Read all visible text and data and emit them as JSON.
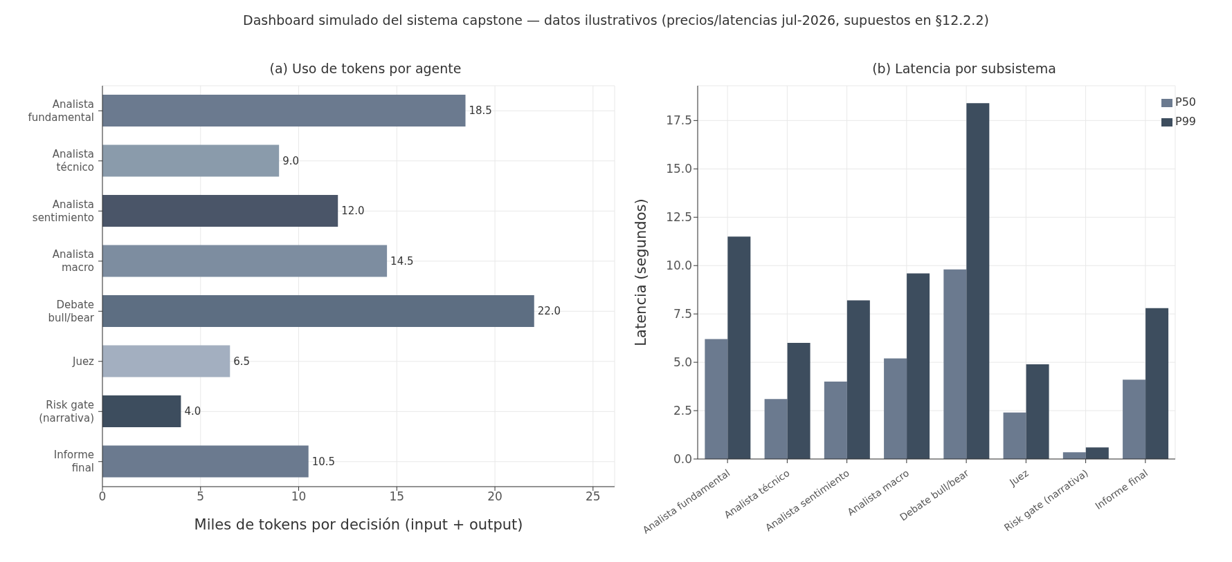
{
  "chart_data": [
    {
      "type": "bar",
      "title": "(a) Uso de tokens por agente",
      "subtitle": "Dashboard simulado del sistema capstone — datos ilustrativos (precios/latencias jul-2026, supuestos en §12.2.2)",
      "orientation": "horizontal",
      "xlabel": "Miles de tokens por decisión (input + output)",
      "categories": [
        "Analista\nfundamental",
        "Analista\ntécnico",
        "Analista\nsentimiento",
        "Analista\nmacro",
        "Debate\nbull/bear",
        "Juez",
        "Risk gate\n(narrativa)",
        "Informe\nfinal"
      ],
      "values": [
        18.5,
        9.0,
        12.0,
        14.5,
        22.0,
        6.5,
        4.0,
        10.5
      ],
      "colors": [
        "#6b7a8f",
        "#8a9bab",
        "#4a5568",
        "#7d8da0",
        "#5d6e82",
        "#a3afc0",
        "#3d4d5e",
        "#6b7a8f"
      ],
      "value_labels": [
        "18.5",
        "9.0",
        "12.0",
        "14.5",
        "22.0",
        "6.5",
        "4.0",
        "10.5"
      ],
      "xlim": [
        0,
        26.1
      ],
      "xticks": [
        0,
        5,
        10,
        15,
        20,
        25
      ],
      "grid": true
    },
    {
      "type": "bar",
      "title": "(b) Latencia por subsistema",
      "ylabel": "Latencia (segundos)",
      "categories": [
        "Analista fundamental",
        "Analista técnico",
        "Analista sentimiento",
        "Analista macro",
        "Debate bull/bear",
        "Juez",
        "Risk gate (narrativa)",
        "Informe final"
      ],
      "series": [
        {
          "name": "P50",
          "color": "#6b7a8f",
          "values": [
            6.2,
            3.1,
            4.0,
            5.2,
            9.8,
            2.4,
            0.35,
            4.1
          ]
        },
        {
          "name": "P99",
          "color": "#3d4d5e",
          "values": [
            11.5,
            6.0,
            8.2,
            9.6,
            18.4,
            4.9,
            0.6,
            7.8
          ]
        }
      ],
      "ylim": [
        0,
        19.3
      ],
      "yticks": [
        {
          "value": 0,
          "label": "0.0"
        },
        {
          "value": 2.5,
          "label": "2.5"
        },
        {
          "value": 5,
          "label": "5.0"
        },
        {
          "value": 7.5,
          "label": "7.5"
        },
        {
          "value": 10,
          "label": "10.0"
        },
        {
          "value": 12.5,
          "label": "12.5"
        },
        {
          "value": 15,
          "label": "15.0"
        },
        {
          "value": 17.5,
          "label": "17.5"
        }
      ],
      "grid": true,
      "legend": "top right"
    }
  ]
}
